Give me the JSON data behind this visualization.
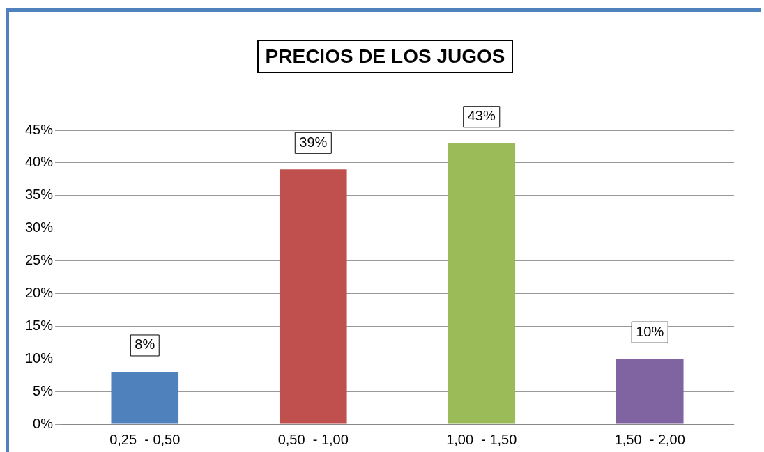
{
  "chart_data": {
    "type": "bar",
    "title": "PRECIOS DE LOS JUGOS",
    "categories": [
      "0,25  - 0,50",
      "0,50  - 1,00",
      "1,00  - 1,50",
      "1,50  - 2,00"
    ],
    "values": [
      8,
      39,
      43,
      10
    ],
    "colors": [
      "#4f81bd",
      "#c0504d",
      "#9bbb59",
      "#8064a2"
    ],
    "value_labels": [
      "8%",
      "39%",
      "43%",
      "10%"
    ],
    "ylim": [
      0,
      45
    ],
    "yticks": [
      {
        "value": 0,
        "label": "0%"
      },
      {
        "value": 5,
        "label": "5%"
      },
      {
        "value": 10,
        "label": "10%"
      },
      {
        "value": 15,
        "label": "15%"
      },
      {
        "value": 20,
        "label": "20%"
      },
      {
        "value": 25,
        "label": "25%"
      },
      {
        "value": 30,
        "label": "30%"
      },
      {
        "value": 35,
        "label": "35%"
      },
      {
        "value": 40,
        "label": "40%"
      },
      {
        "value": 45,
        "label": "45%"
      }
    ],
    "grid": "y"
  }
}
